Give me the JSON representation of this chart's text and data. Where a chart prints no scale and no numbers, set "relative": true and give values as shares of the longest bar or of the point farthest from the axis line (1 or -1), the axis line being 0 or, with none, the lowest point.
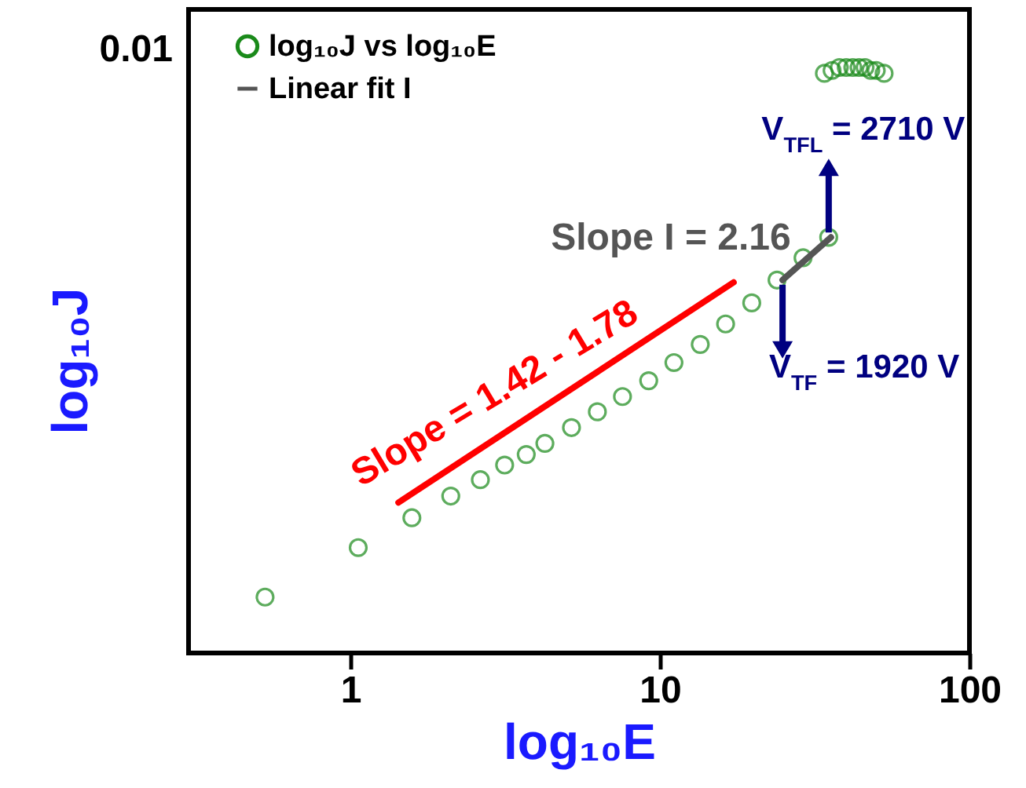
{
  "chart_data": {
    "type": "scatter",
    "xlabel": "log₁₀E",
    "ylabel": "log₁₀J",
    "log": "x",
    "xlim": [
      0.3,
      100
    ],
    "xticks": [
      1,
      10,
      100
    ],
    "relative": true,
    "legend": "top left",
    "marker": "circle",
    "series": [
      {
        "name": "log₁₀J vs log₁₀E",
        "color": "#1a8a1a",
        "x": [
          0.53,
          1.06,
          1.58,
          2.11,
          2.63,
          3.15,
          3.7,
          4.25,
          5.18,
          6.28,
          7.57,
          9.2,
          11.1,
          13.5,
          16.3,
          19.8,
          23.9,
          29.0,
          35.1,
          34,
          36,
          38,
          40,
          42,
          44,
          46,
          48,
          50,
          53
        ],
        "values": [
          0.0955,
          0.18,
          0.231,
          0.268,
          0.296,
          0.321,
          0.339,
          0.358,
          0.385,
          0.412,
          0.438,
          0.465,
          0.496,
          0.527,
          0.562,
          0.598,
          0.637,
          0.675,
          0.71,
          0.99,
          0.995,
          1,
          1,
          1,
          1,
          1,
          0.995,
          0.995,
          0.99
        ]
      },
      {
        "name": "Linear fit I",
        "type": "line",
        "marker": "none",
        "color": "#555555",
        "x": [
          24.9,
          35.7
        ],
        "values": [
          0.637,
          0.71
        ]
      },
      {
        "type": "line",
        "marker": "none",
        "color": "#ff0000",
        "x": [
          1.43,
          17.3
        ],
        "values": [
          0.257,
          0.633
        ]
      }
    ],
    "annotations": [
      "Slope = 1.42 - 1.78",
      "Slope I = 2.16",
      {
        "text": "V$_{TFL}$ = 2710 V",
        "x": 35.1,
        "y": 0.71
      },
      {
        "text": "V$_{TF}$ = 1920 V",
        "x": 24.9,
        "y": 0.637
      },
      "0.01"
    ]
  }
}
